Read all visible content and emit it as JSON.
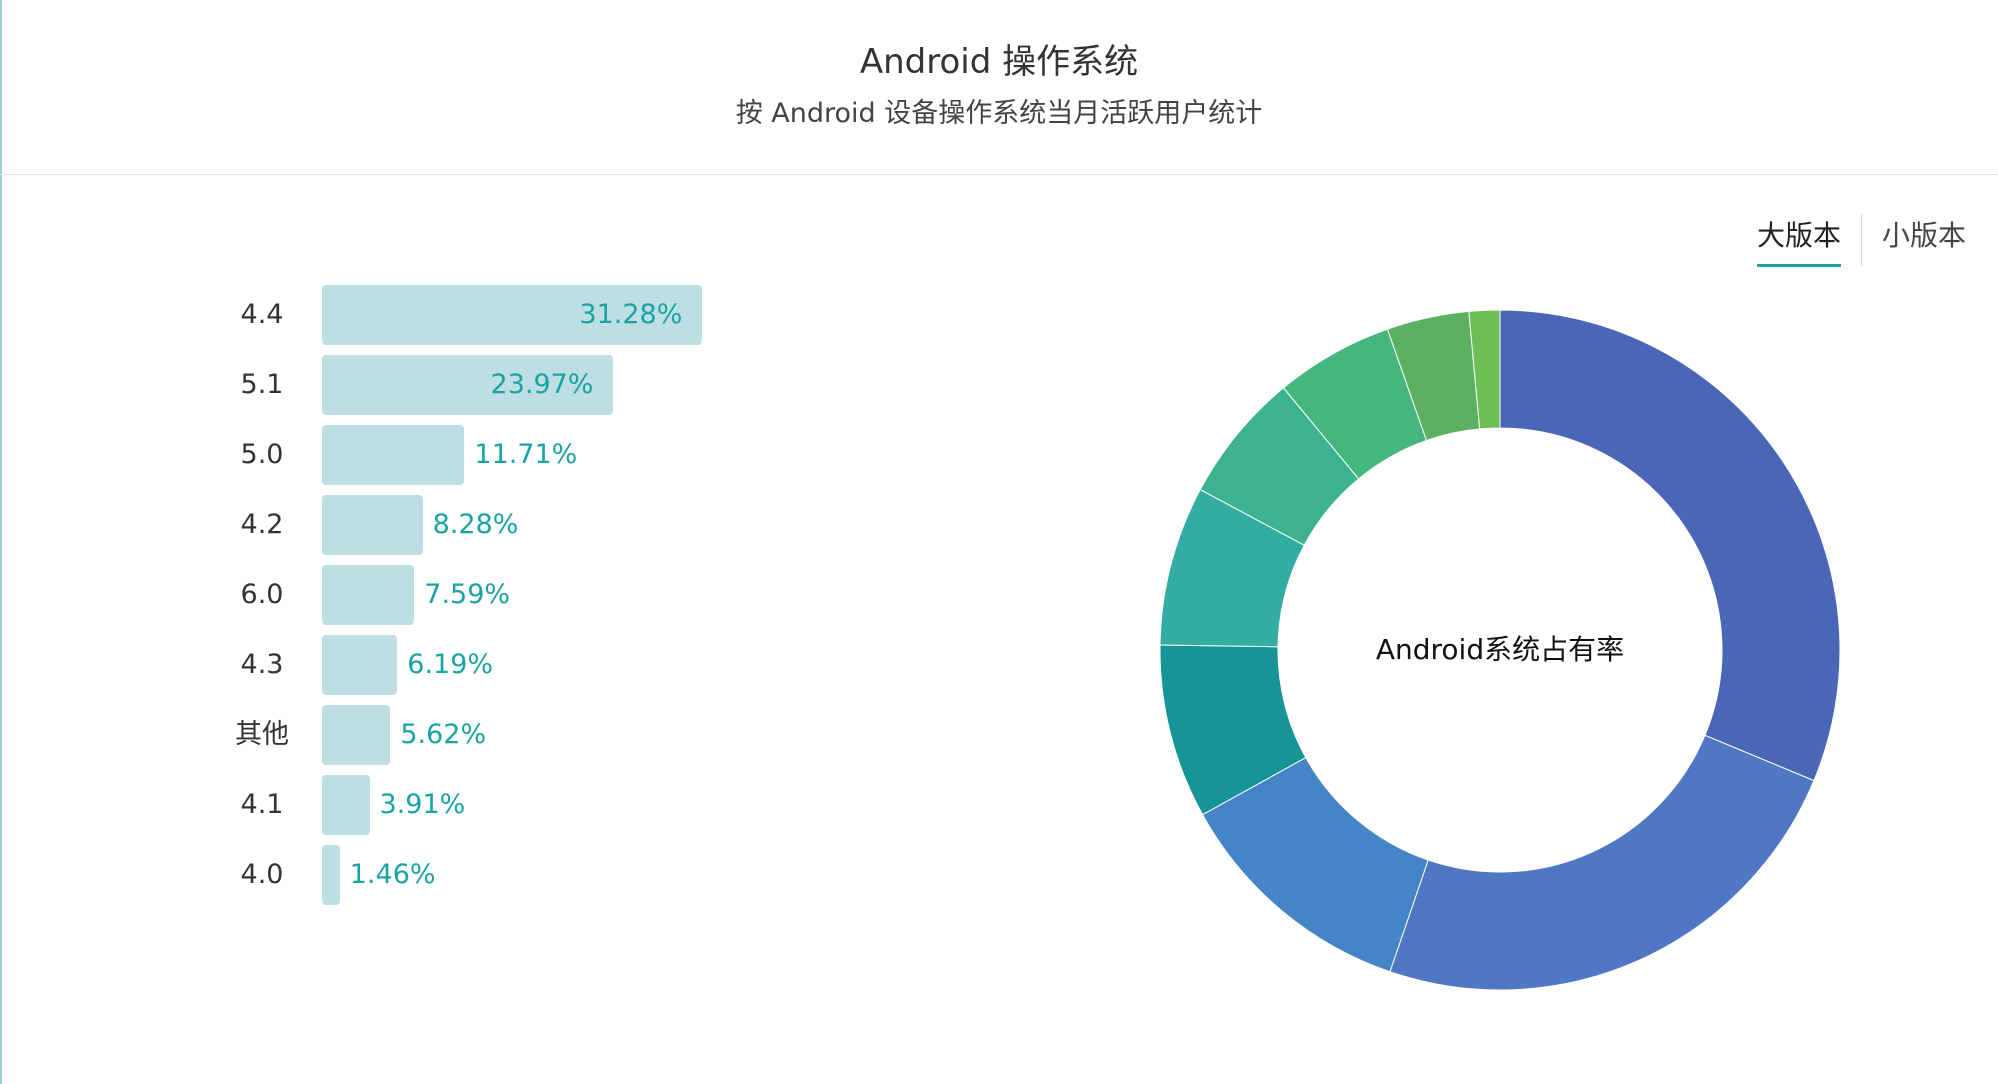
{
  "title": "Android 操作系统",
  "subtitle": "按 Android 设备操作系统当月活跃用户统计",
  "tabs": [
    {
      "label": "大版本",
      "active": true
    },
    {
      "label": "小版本",
      "active": false
    }
  ],
  "chart_data": [
    {
      "type": "bar",
      "orientation": "horizontal",
      "categories": [
        "4.4",
        "5.1",
        "5.0",
        "4.2",
        "6.0",
        "4.3",
        "其他",
        "4.1",
        "4.0"
      ],
      "values": [
        31.28,
        23.97,
        11.71,
        8.28,
        7.59,
        6.19,
        5.62,
        3.91,
        1.46
      ],
      "value_labels": [
        "31.28%",
        "23.97%",
        "11.71%",
        "8.28%",
        "7.59%",
        "6.19%",
        "5.62%",
        "3.91%",
        "1.46%"
      ],
      "unit": "%",
      "colors": {
        "bar": "#bddee2",
        "label": "#1aa3a3"
      }
    },
    {
      "type": "pie",
      "variant": "donut",
      "center_label": "Android系统占有率",
      "start_angle": "top, clockwise",
      "slices": [
        {
          "category": "4.4",
          "value": 31.28,
          "color": "#4a67b7"
        },
        {
          "category": "5.1",
          "value": 23.97,
          "color": "#5077c4"
        },
        {
          "category": "5.0",
          "value": 11.71,
          "color": "#4584c6"
        },
        {
          "category": "4.2",
          "value": 8.28,
          "color": "#179497"
        },
        {
          "category": "6.0",
          "value": 7.59,
          "color": "#33ada2"
        },
        {
          "category": "4.3",
          "value": 6.19,
          "color": "#3cb28e"
        },
        {
          "category": "其他",
          "value": 5.62,
          "color": "#45b77e"
        },
        {
          "category": "4.1",
          "value": 3.91,
          "color": "#5bb161"
        },
        {
          "category": "4.0",
          "value": 1.46,
          "color": "#6cbf52"
        }
      ]
    }
  ]
}
